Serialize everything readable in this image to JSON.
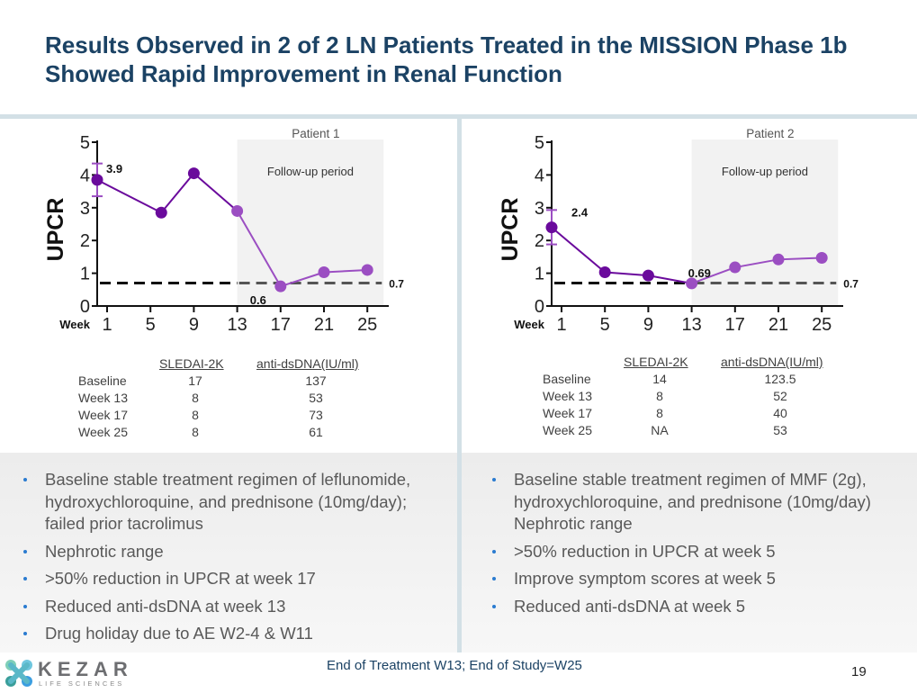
{
  "slide": {
    "title": "Results Observed in 2 of 2 LN Patients Treated in the MISSION Phase 1b Showed Rapid Improvement in Renal Function",
    "footer_text": "End of Treatment W13; End of Study=W25",
    "page_number": "19",
    "logo": {
      "name": "KEZAR",
      "tagline": "LIFE SCIENCES"
    }
  },
  "colors": {
    "title": "#1b4264",
    "series_dark": "#6a0a9c",
    "series_light": "#9b4ec2",
    "followup_shade": "#f2f2f2",
    "bullet": "#2a7bd0",
    "divider": "#d3e0e6"
  },
  "chart_data": [
    {
      "type": "line",
      "title": "Patient 1",
      "ylabel": "UPCR",
      "xlabel": "Week",
      "ylim": [
        0,
        5
      ],
      "yticks": [
        "0",
        "1",
        "2",
        "3",
        "4",
        "5"
      ],
      "xticks": [
        "1",
        "5",
        "9",
        "13",
        "17",
        "21",
        "25"
      ],
      "xtick_values": [
        1,
        5,
        9,
        13,
        17,
        21,
        25
      ],
      "grid": false,
      "shaded_region": {
        "label": "Follow-up period",
        "x_start": 13,
        "x_end": 26.5
      },
      "threshold": {
        "value": 0.7,
        "label": "0.7",
        "style": "dashed"
      },
      "series": [
        {
          "name": "UPCR",
          "x": [
            0,
            6,
            9,
            13,
            17,
            21,
            25
          ],
          "y": [
            3.85,
            2.85,
            4.05,
            2.9,
            0.6,
            1.03,
            1.1
          ],
          "error_bar_first": [
            3.35,
            4.35
          ]
        }
      ],
      "annotations": [
        {
          "x": 0,
          "y": 3.9,
          "text": "3.9"
        },
        {
          "x": 17,
          "y": 0.6,
          "text": "0.6"
        }
      ]
    },
    {
      "type": "line",
      "title": "Patient 2",
      "ylabel": "UPCR",
      "xlabel": "Week",
      "ylim": [
        0,
        5
      ],
      "yticks": [
        "0",
        "1",
        "2",
        "3",
        "4",
        "5"
      ],
      "xticks": [
        "1",
        "5",
        "9",
        "13",
        "17",
        "21",
        "25"
      ],
      "xtick_values": [
        1,
        5,
        9,
        13,
        17,
        21,
        25
      ],
      "grid": false,
      "shaded_region": {
        "label": "Follow-up period",
        "x_start": 13,
        "x_end": 26.5
      },
      "threshold": {
        "value": 0.7,
        "label": "0.7",
        "style": "dashed"
      },
      "series": [
        {
          "name": "UPCR",
          "x": [
            0,
            5,
            9,
            13,
            17,
            21,
            25
          ],
          "y": [
            2.4,
            1.03,
            0.93,
            0.69,
            1.18,
            1.42,
            1.47
          ],
          "error_bar_first": [
            1.88,
            2.93
          ]
        }
      ],
      "annotations": [
        {
          "x": 0,
          "y": 2.4,
          "text": "2.4"
        },
        {
          "x": 13,
          "y": 0.69,
          "text": "0.69"
        }
      ]
    }
  ],
  "patients": [
    {
      "table": {
        "headers": [
          "SLEDAI-2K",
          "anti-dsDNA(IU/ml)"
        ],
        "rows": [
          {
            "label": "Baseline",
            "sledai": "17",
            "dsdna": "137"
          },
          {
            "label": "Week 13",
            "sledai": "8",
            "dsdna": "53"
          },
          {
            "label": "Week 17",
            "sledai": "8",
            "dsdna": "73"
          },
          {
            "label": "Week 25",
            "sledai": "8",
            "dsdna": "61"
          }
        ]
      },
      "bullets": [
        "Baseline stable treatment regimen of leflunomide, hydroxychloroquine, and prednisone (10mg/day); failed prior tacrolimus",
        "Nephrotic range",
        ">50% reduction in UPCR at week 17",
        "Reduced anti-dsDNA at week 13",
        "Drug holiday due to AE W2-4 & W11"
      ]
    },
    {
      "table": {
        "headers": [
          "SLEDAI-2K",
          "anti-dsDNA(IU/ml)"
        ],
        "rows": [
          {
            "label": "Baseline",
            "sledai": "14",
            "dsdna": "123.5"
          },
          {
            "label": "Week 13",
            "sledai": "8",
            "dsdna": "52"
          },
          {
            "label": "Week 17",
            "sledai": "8",
            "dsdna": "40"
          },
          {
            "label": "Week 25",
            "sledai": "NA",
            "dsdna": "53"
          }
        ]
      },
      "bullets": [
        "Baseline stable treatment regimen of MMF (2g), hydroxychloroquine, and prednisone (10mg/day) Nephrotic range",
        ">50% reduction in UPCR at week 5",
        "Improve symptom scores at week 5",
        "Reduced anti-dsDNA at week 5"
      ]
    }
  ]
}
